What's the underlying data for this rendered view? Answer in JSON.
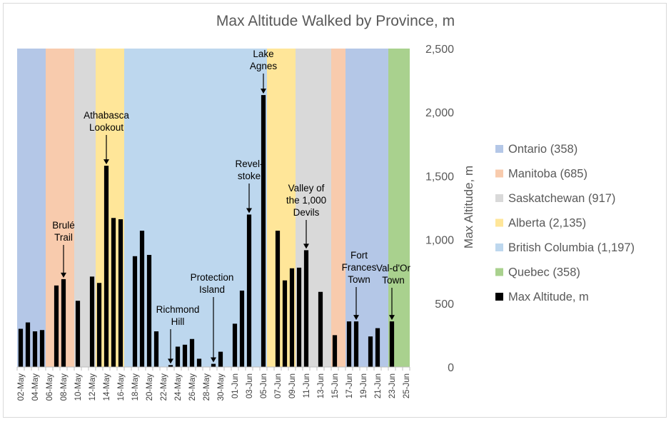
{
  "chart_data": {
    "type": "bar",
    "title": "Max Altitude Walked by Province, m",
    "ylabel": "Max Altitude, m",
    "ylim": [
      0,
      2500
    ],
    "yticks": [
      "0",
      "500",
      "1,000",
      "1,500",
      "2,000",
      "2,500"
    ],
    "y_axis_side": "right",
    "legend_position": "right",
    "x_tick_labels": [
      "02-May",
      "04-May",
      "06-May",
      "08-May",
      "10-May",
      "12-May",
      "14-May",
      "16-May",
      "18-May",
      "20-May",
      "22-May",
      "24-May",
      "26-May",
      "28-May",
      "30-May",
      "01-Jun",
      "03-Jun",
      "05-Jun",
      "07-Jun",
      "09-Jun",
      "11-Jun",
      "13-Jun",
      "15-Jun",
      "17-Jun",
      "19-Jun",
      "21-Jun",
      "23-Jun",
      "25-Jun"
    ],
    "series": [
      {
        "name": "Max Altitude, m",
        "color": "#000000",
        "points": [
          {
            "date": "02-May",
            "value": 300
          },
          {
            "date": "03-May",
            "value": 350
          },
          {
            "date": "04-May",
            "value": 280
          },
          {
            "date": "05-May",
            "value": 290
          },
          {
            "date": "07-May",
            "value": 640
          },
          {
            "date": "08-May",
            "value": 690
          },
          {
            "date": "10-May",
            "value": 520
          },
          {
            "date": "12-May",
            "value": 710
          },
          {
            "date": "13-May",
            "value": 660
          },
          {
            "date": "14-May",
            "value": 1580
          },
          {
            "date": "15-May",
            "value": 1170
          },
          {
            "date": "16-May",
            "value": 1160
          },
          {
            "date": "18-May",
            "value": 870
          },
          {
            "date": "19-May",
            "value": 1070
          },
          {
            "date": "20-May",
            "value": 880
          },
          {
            "date": "21-May",
            "value": 280
          },
          {
            "date": "23-May",
            "value": 15
          },
          {
            "date": "24-May",
            "value": 160
          },
          {
            "date": "25-May",
            "value": 175
          },
          {
            "date": "26-May",
            "value": 220
          },
          {
            "date": "27-May",
            "value": 65
          },
          {
            "date": "29-May",
            "value": 25
          },
          {
            "date": "30-May",
            "value": 120
          },
          {
            "date": "01-Jun",
            "value": 340
          },
          {
            "date": "02-Jun",
            "value": 600
          },
          {
            "date": "03-Jun",
            "value": 1197
          },
          {
            "date": "05-Jun",
            "value": 2135
          },
          {
            "date": "07-Jun",
            "value": 1070
          },
          {
            "date": "08-Jun",
            "value": 680
          },
          {
            "date": "09-Jun",
            "value": 775
          },
          {
            "date": "10-Jun",
            "value": 780
          },
          {
            "date": "11-Jun",
            "value": 917
          },
          {
            "date": "13-Jun",
            "value": 590
          },
          {
            "date": "15-Jun",
            "value": 250
          },
          {
            "date": "17-Jun",
            "value": 358
          },
          {
            "date": "18-Jun",
            "value": 358
          },
          {
            "date": "20-Jun",
            "value": 240
          },
          {
            "date": "21-Jun",
            "value": 305
          },
          {
            "date": "23-Jun",
            "value": 358
          }
        ]
      }
    ],
    "province_bands": [
      {
        "name": "Ontario",
        "legend": "Ontario (358)",
        "color": "#b4c7e7",
        "from_day": 0,
        "to_day": 4,
        "value": 358
      },
      {
        "name": "Manitoba",
        "legend": "Manitoba (685)",
        "color": "#f8cbad",
        "from_day": 4,
        "to_day": 8,
        "value": 685
      },
      {
        "name": "Saskatchewan",
        "legend": "Saskatchewan (917)",
        "color": "#d9d9d9",
        "from_day": 8,
        "to_day": 11,
        "value": 917
      },
      {
        "name": "Alberta",
        "legend": "Alberta (2,135)",
        "color": "#ffe699",
        "from_day": 11,
        "to_day": 15,
        "value": 2135
      },
      {
        "name": "British Columbia",
        "legend": "British Columbia (1,197)",
        "color": "#bdd7ee",
        "from_day": 15,
        "to_day": 35,
        "value": 1197
      },
      {
        "name": "Alberta",
        "legend": "",
        "color": "#ffe699",
        "from_day": 35,
        "to_day": 39,
        "value": 2135
      },
      {
        "name": "Saskatchewan",
        "legend": "",
        "color": "#d9d9d9",
        "from_day": 39,
        "to_day": 44,
        "value": 917
      },
      {
        "name": "Manitoba",
        "legend": "",
        "color": "#f8cbad",
        "from_day": 44,
        "to_day": 46,
        "value": 685
      },
      {
        "name": "Ontario",
        "legend": "",
        "color": "#b4c7e7",
        "from_day": 46,
        "to_day": 52,
        "value": 358
      },
      {
        "name": "Quebec",
        "legend": "Quebec (358)",
        "color": "#a9d18e",
        "from_day": 52,
        "to_day": 55,
        "value": 358
      }
    ],
    "legend": [
      {
        "label": "Ontario (358)",
        "color": "#b4c7e7"
      },
      {
        "label": "Manitoba (685)",
        "color": "#f8cbad"
      },
      {
        "label": "Saskatchewan (917)",
        "color": "#d9d9d9"
      },
      {
        "label": "Alberta (2,135)",
        "color": "#ffe699"
      },
      {
        "label": "British Columbia (1,197)",
        "color": "#bdd7ee"
      },
      {
        "label": "Quebec (358)",
        "color": "#a9d18e"
      },
      {
        "label": "Max Altitude, m",
        "color": "#000000"
      }
    ],
    "annotations": [
      {
        "lines": [
          "Brulé",
          "Trail"
        ],
        "date": "08-May",
        "value": 690
      },
      {
        "lines": [
          "Athabasca",
          "Lookout"
        ],
        "date": "14-May",
        "value": 1580
      },
      {
        "lines": [
          "Richmond",
          "Hill"
        ],
        "date": "23-May",
        "value": 15
      },
      {
        "lines": [
          "Protection",
          "Island"
        ],
        "date": "29-May",
        "value": 25
      },
      {
        "lines": [
          "Revel-",
          "stoke"
        ],
        "date": "03-Jun",
        "value": 1197
      },
      {
        "lines": [
          "Lake",
          "Agnes"
        ],
        "date": "05-Jun",
        "value": 2135
      },
      {
        "lines": [
          "Valley of",
          "the 1,000",
          "Devils"
        ],
        "date": "11-Jun",
        "value": 917
      },
      {
        "lines": [
          "Fort",
          "Frances",
          "Town"
        ],
        "date": "18-Jun",
        "value": 358
      },
      {
        "lines": [
          "Val-d'Or",
          "Town"
        ],
        "date": "23-Jun",
        "value": 358
      }
    ]
  }
}
